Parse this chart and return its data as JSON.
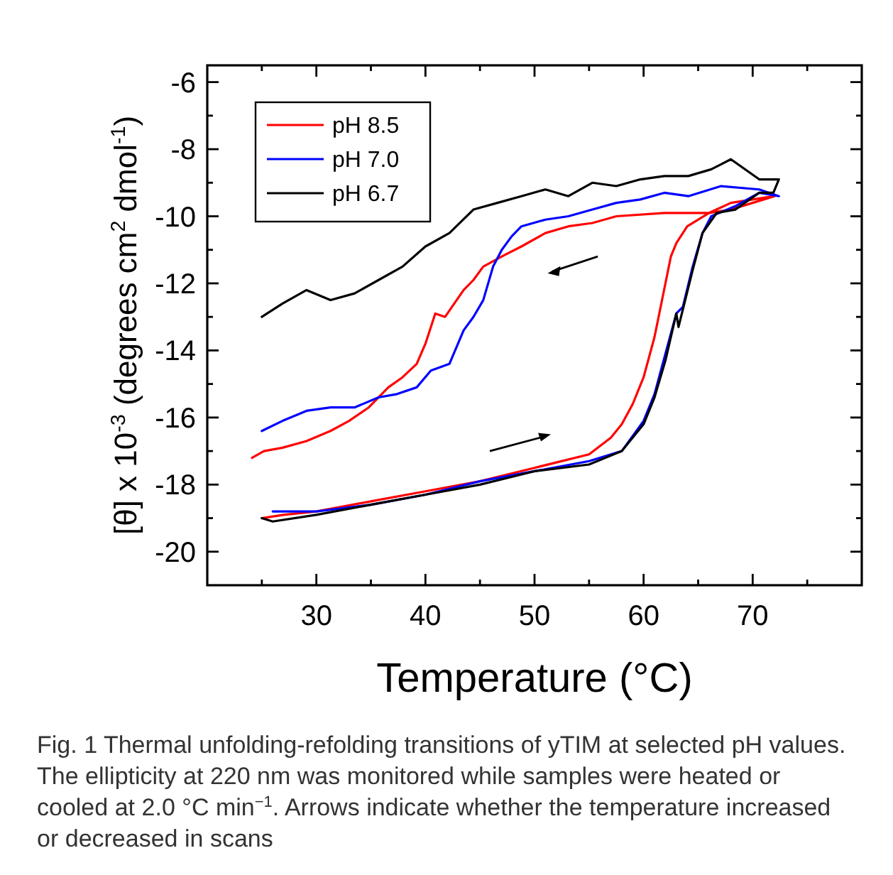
{
  "chart_data": {
    "type": "line",
    "xlabel": "Temperature (°C)",
    "ylabel": "[θ] x 10$^{-3}$ (degrees cm$^{2}$ dmol$^{-1}$)",
    "annotations": [
      "Fig. 1 Thermal unfolding-refolding transitions of yTIM at selected pH values. The ellipticity at 220 nm was monitored while samples were heated or cooled at 2.0 °C min$^{−1}$. Arrows indicate whether the temperature increased or decreased in scans"
    ],
    "xlim": [
      20,
      80
    ],
    "xticks": [
      {
        "value": 25,
        "label": null
      },
      30,
      {
        "value": 35,
        "label": null
      },
      40,
      {
        "value": 45,
        "label": null
      },
      50,
      {
        "value": 55,
        "label": null
      },
      60,
      {
        "value": 65,
        "label": null
      },
      70,
      {
        "value": 75,
        "label": null
      }
    ],
    "ylim": [
      -21,
      -5.5
    ],
    "yticks": [
      -20,
      {
        "value": -19,
        "label": null
      },
      -18,
      {
        "value": -17,
        "label": null
      },
      -16,
      {
        "value": -15,
        "label": null
      },
      -14,
      {
        "value": -13,
        "label": null
      },
      -12,
      {
        "value": -11,
        "label": null
      },
      -10,
      {
        "value": -9,
        "label": null
      },
      -8,
      {
        "value": -7,
        "label": null
      },
      -6
    ],
    "grid": false,
    "legend": "top left",
    "marker": "none",
    "line_style": "solid",
    "series": [
      {
        "name": "pH 8.5",
        "color": "#ff0000",
        "x": [
          25,
          27,
          30,
          35,
          40,
          45,
          50,
          55,
          57,
          58,
          59,
          60,
          61,
          61.5,
          62,
          62.5,
          63,
          64,
          66,
          68,
          70,
          72,
          70,
          68,
          66,
          61.9,
          57.5,
          55.3,
          53.1,
          51,
          48.8,
          47,
          45.3,
          44.4,
          43.5,
          41.8,
          40.9,
          40,
          39.2,
          37.9,
          36.6,
          34.8,
          33,
          31.3,
          29.1,
          26.9,
          25.2,
          24.1
        ],
        "values": [
          -19,
          -18.9,
          -18.8,
          -18.5,
          -18.2,
          -17.9,
          -17.5,
          -17.1,
          -16.6,
          -16.2,
          -15.6,
          -14.8,
          -13.6,
          -12.8,
          -12,
          -11.2,
          -10.8,
          -10.3,
          -9.9,
          -9.6,
          -9.5,
          -9.4,
          -9.6,
          -9.8,
          -9.9,
          -9.9,
          -10,
          -10.2,
          -10.3,
          -10.5,
          -10.9,
          -11.2,
          -11.5,
          -11.9,
          -12.2,
          -13,
          -12.9,
          -13.8,
          -14.4,
          -14.8,
          -15.1,
          -15.7,
          -16.1,
          -16.4,
          -16.7,
          -16.9,
          -17,
          -17.2
        ]
      },
      {
        "name": "pH 7.0",
        "color": "#0000ff",
        "x": [
          26,
          28,
          30,
          35,
          40,
          45,
          50,
          55,
          58,
          60,
          61,
          62,
          63,
          63.6,
          64.5,
          65.4,
          66.2,
          68.4,
          70.6,
          72.4,
          70.6,
          67.1,
          64.1,
          61.9,
          59.7,
          57.5,
          55.3,
          53.1,
          51,
          48.8,
          47.9,
          47,
          46.2,
          45.3,
          44.4,
          43.5,
          42.2,
          40.5,
          39.2,
          37.4,
          35.7,
          33.5,
          31.3,
          29.1,
          26.9,
          25
        ],
        "values": [
          -18.8,
          -18.8,
          -18.8,
          -18.6,
          -18.3,
          -17.9,
          -17.6,
          -17.3,
          -17,
          -16.1,
          -15.3,
          -14.1,
          -12.9,
          -12.7,
          -11.5,
          -10.5,
          -10,
          -9.7,
          -9.3,
          -9.4,
          -9.2,
          -9.1,
          -9.4,
          -9.3,
          -9.5,
          -9.6,
          -9.8,
          -10,
          -10.1,
          -10.3,
          -10.6,
          -11,
          -11.5,
          -12.5,
          -13,
          -13.4,
          -14.4,
          -14.6,
          -15.1,
          -15.3,
          -15.4,
          -15.7,
          -15.7,
          -15.8,
          -16.1,
          -16.4
        ]
      },
      {
        "name": "pH 6.7",
        "color": "#000000",
        "x": [
          25,
          26,
          30,
          35,
          40,
          45,
          50,
          55,
          58,
          60,
          61,
          62,
          63,
          63.2,
          64.5,
          65.4,
          66.7,
          68.4,
          70.6,
          71.9,
          72.4,
          70.6,
          68,
          66.2,
          64.1,
          61.9,
          59.7,
          57.5,
          55.3,
          53.1,
          51,
          48.8,
          46.6,
          44.4,
          42.2,
          40,
          37.9,
          35.7,
          33.5,
          31.3,
          29.1,
          26.9,
          25
        ],
        "values": [
          -19,
          -19.1,
          -18.9,
          -18.6,
          -18.3,
          -18,
          -17.6,
          -17.4,
          -17,
          -16.2,
          -15.4,
          -14.3,
          -12.9,
          -13.3,
          -11.6,
          -10.5,
          -9.9,
          -9.8,
          -9.3,
          -9.3,
          -8.9,
          -8.9,
          -8.3,
          -8.6,
          -8.8,
          -8.8,
          -8.9,
          -9.1,
          -9,
          -9.4,
          -9.2,
          -9.4,
          -9.6,
          -9.8,
          -10.5,
          -10.9,
          -11.5,
          -11.9,
          -12.3,
          -12.5,
          -12.2,
          -12.6,
          -13
        ]
      }
    ]
  }
}
